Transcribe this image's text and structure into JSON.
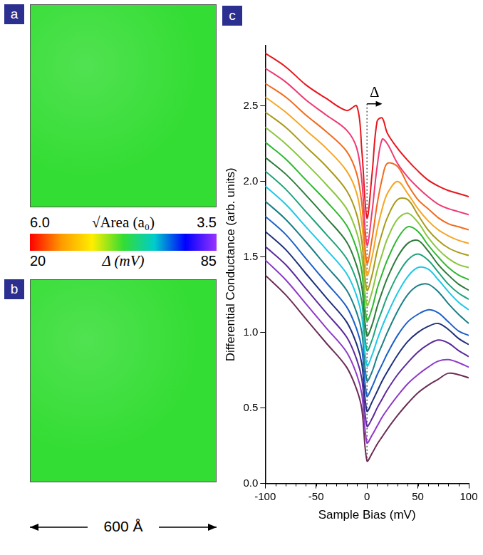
{
  "panels": [
    {
      "panel": "a"
    },
    {
      "panel": "b"
    }
  ],
  "colorbar": {
    "colors": [
      "#ff0000",
      "#ff9900",
      "#ffee00",
      "#33dd33",
      "#00cccc",
      "#0000ff",
      "#9933ff"
    ],
    "top": {
      "label": "√Area (a₀)",
      "ticks": [
        {
          "value": 6,
          "label": "6.0"
        },
        3.5
      ]
    },
    "bottom": {
      "label": "Δ (mV)",
      "ticks": [
        20,
        85
      ]
    }
  },
  "scale_bar": "600 Å",
  "chart_data": {
    "type": "line",
    "panel": "c",
    "xlabel": "Sample Bias (mV)",
    "ylabel": "Differential Conductance (arb. units)",
    "x": [
      -100,
      -80,
      -60,
      -40,
      -20,
      -10,
      -5,
      0,
      5,
      10,
      15,
      20,
      30,
      40,
      50,
      60,
      70,
      80,
      90,
      100
    ],
    "series": [
      {
        "color": "#e8161c",
        "values": [
          2.85,
          2.76,
          2.64,
          2.55,
          2.47,
          2.5,
          2.2,
          1.76,
          2.05,
          2.4,
          2.42,
          2.32,
          2.22,
          2.14,
          2.07,
          2.01,
          1.97,
          1.94,
          1.92,
          1.9
        ]
      },
      {
        "color": "#ef3a73",
        "values": [
          2.75,
          2.66,
          2.54,
          2.44,
          2.34,
          2.22,
          2.0,
          1.58,
          1.8,
          2.1,
          2.28,
          2.25,
          2.12,
          2.03,
          1.96,
          1.9,
          1.85,
          1.82,
          1.8,
          1.78
        ]
      },
      {
        "color": "#f26b1d",
        "values": [
          2.65,
          2.56,
          2.44,
          2.33,
          2.2,
          2.05,
          1.85,
          1.46,
          1.62,
          1.85,
          2.02,
          2.12,
          2.1,
          1.98,
          1.88,
          1.82,
          1.76,
          1.72,
          1.7,
          1.68
        ]
      },
      {
        "color": "#f5a623",
        "values": [
          2.56,
          2.46,
          2.34,
          2.22,
          2.07,
          1.92,
          1.72,
          1.38,
          1.5,
          1.68,
          1.82,
          1.92,
          2.0,
          1.92,
          1.82,
          1.74,
          1.68,
          1.64,
          1.61,
          1.59
        ]
      },
      {
        "color": "#a89a1a",
        "values": [
          2.46,
          2.36,
          2.23,
          2.1,
          1.94,
          1.78,
          1.6,
          1.28,
          1.38,
          1.54,
          1.66,
          1.76,
          1.88,
          1.88,
          1.78,
          1.68,
          1.61,
          1.56,
          1.53,
          1.51
        ]
      },
      {
        "color": "#8cc63f",
        "values": [
          2.36,
          2.25,
          2.12,
          1.98,
          1.82,
          1.66,
          1.5,
          1.18,
          1.27,
          1.41,
          1.52,
          1.62,
          1.75,
          1.79,
          1.73,
          1.63,
          1.55,
          1.49,
          1.45,
          1.43
        ]
      },
      {
        "color": "#2eb82e",
        "values": [
          2.26,
          2.15,
          2.01,
          1.87,
          1.71,
          1.55,
          1.4,
          1.08,
          1.16,
          1.29,
          1.39,
          1.48,
          1.62,
          1.7,
          1.67,
          1.58,
          1.5,
          1.43,
          1.38,
          1.35
        ]
      },
      {
        "color": "#2d7a3a",
        "values": [
          2.16,
          2.05,
          1.91,
          1.76,
          1.6,
          1.44,
          1.3,
          0.98,
          1.05,
          1.17,
          1.27,
          1.36,
          1.5,
          1.59,
          1.61,
          1.54,
          1.45,
          1.38,
          1.32,
          1.28
        ]
      },
      {
        "color": "#1fa37a",
        "values": [
          2.07,
          1.95,
          1.8,
          1.65,
          1.49,
          1.34,
          1.2,
          0.88,
          0.95,
          1.06,
          1.15,
          1.24,
          1.38,
          1.48,
          1.52,
          1.48,
          1.4,
          1.32,
          1.26,
          1.22
        ]
      },
      {
        "color": "#1ec8e6",
        "values": [
          1.97,
          1.85,
          1.7,
          1.55,
          1.39,
          1.24,
          1.1,
          0.78,
          0.85,
          0.95,
          1.04,
          1.12,
          1.26,
          1.37,
          1.43,
          1.42,
          1.35,
          1.27,
          1.2,
          1.15
        ]
      },
      {
        "color": "#1a7f86",
        "values": [
          1.87,
          1.75,
          1.6,
          1.44,
          1.28,
          1.13,
          1.0,
          0.68,
          0.74,
          0.84,
          0.92,
          1.0,
          1.14,
          1.25,
          1.31,
          1.32,
          1.27,
          1.19,
          1.12,
          1.06
        ]
      },
      {
        "color": "#1c5fc7",
        "values": [
          1.77,
          1.65,
          1.49,
          1.33,
          1.17,
          1.02,
          0.89,
          0.58,
          0.64,
          0.72,
          0.79,
          0.86,
          0.98,
          1.07,
          1.12,
          1.15,
          1.13,
          1.07,
          1.01,
          0.98
        ]
      },
      {
        "color": "#1e2f7a",
        "values": [
          1.67,
          1.55,
          1.39,
          1.23,
          1.07,
          0.92,
          0.79,
          0.48,
          0.54,
          0.61,
          0.68,
          0.74,
          0.85,
          0.94,
          1.0,
          1.04,
          1.06,
          1.02,
          0.96,
          0.92
        ]
      },
      {
        "color": "#5b2a9c",
        "values": [
          1.57,
          1.45,
          1.29,
          1.13,
          0.97,
          0.82,
          0.69,
          0.38,
          0.43,
          0.5,
          0.56,
          0.62,
          0.72,
          0.8,
          0.87,
          0.92,
          0.95,
          0.93,
          0.88,
          0.84
        ]
      },
      {
        "color": "#8e3ac8",
        "values": [
          1.48,
          1.35,
          1.19,
          1.03,
          0.87,
          0.72,
          0.59,
          0.27,
          0.32,
          0.38,
          0.44,
          0.49,
          0.58,
          0.66,
          0.72,
          0.77,
          0.81,
          0.82,
          0.8,
          0.77
        ]
      },
      {
        "color": "#6b2d55",
        "values": [
          1.38,
          1.25,
          1.09,
          0.93,
          0.77,
          0.62,
          0.49,
          0.15,
          0.2,
          0.26,
          0.31,
          0.36,
          0.45,
          0.53,
          0.6,
          0.65,
          0.69,
          0.73,
          0.72,
          0.7
        ]
      }
    ],
    "xlim": [
      -100,
      100
    ],
    "xticks": [
      -100,
      -50,
      0,
      50,
      100
    ],
    "ylim": [
      0,
      2.9
    ],
    "yticks": [
      {
        "value": 0,
        "label": "0.0"
      },
      {
        "value": 0.5,
        "label": "0.5"
      },
      {
        "value": 1,
        "label": "1.0"
      },
      {
        "value": 1.5,
        "label": "1.5"
      },
      {
        "value": 2,
        "label": "2.0"
      },
      {
        "value": 2.5,
        "label": "2.5"
      }
    ],
    "grid": false,
    "annotations": [
      {
        "text": "Δ"
      }
    ]
  }
}
